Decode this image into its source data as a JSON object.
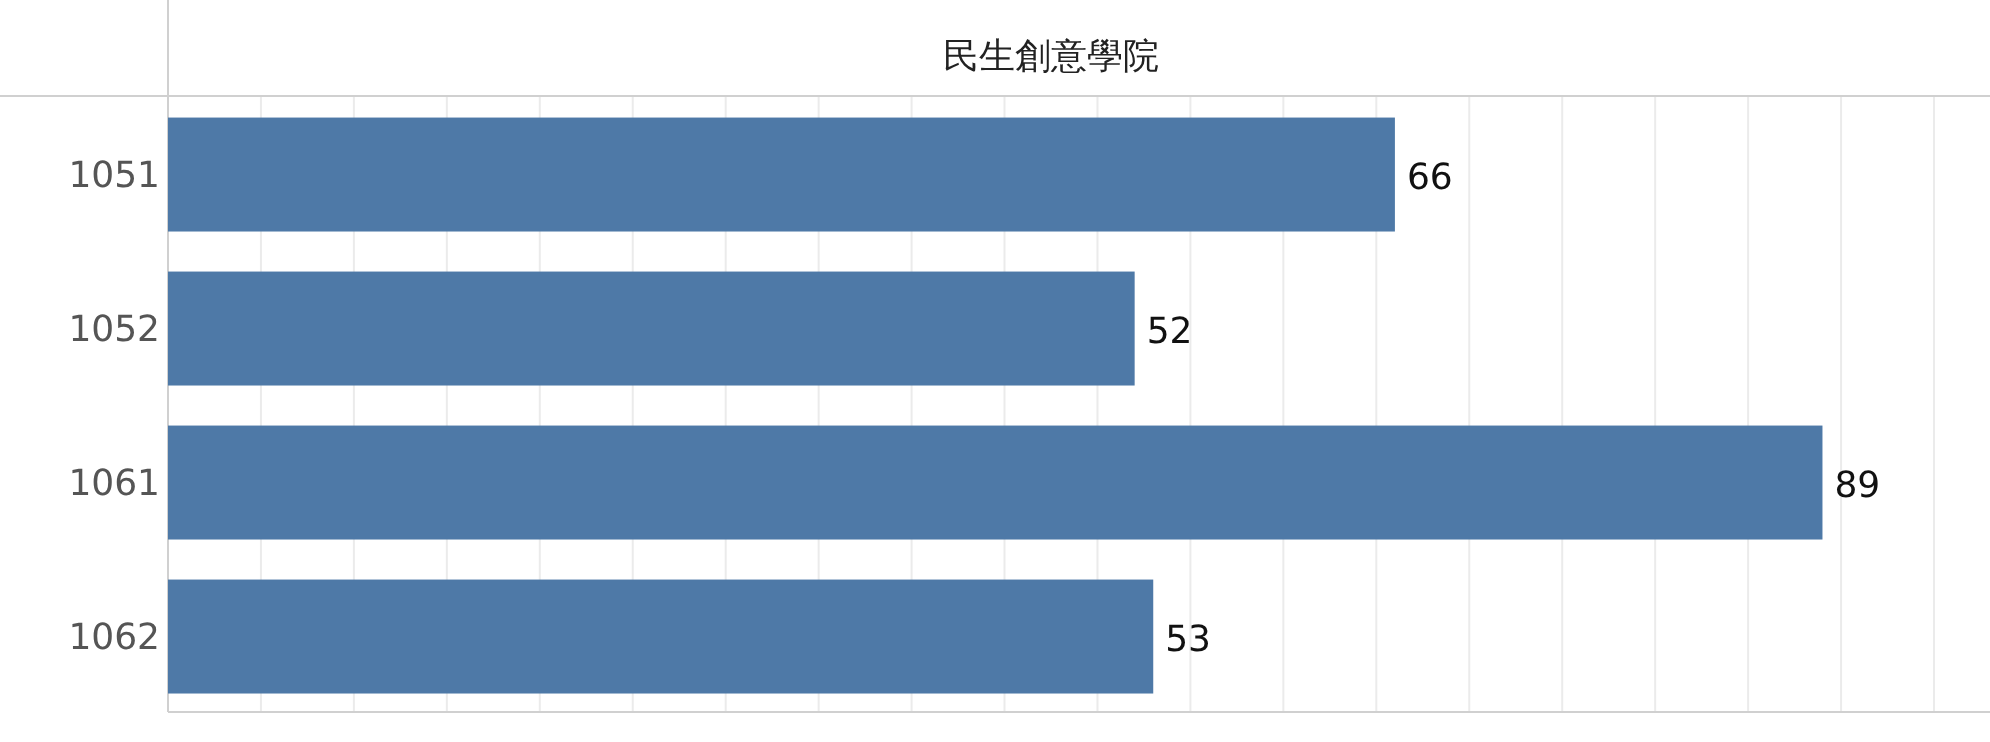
{
  "chart_data": {
    "type": "bar",
    "orientation": "horizontal",
    "title": "民生創意學院",
    "categories": [
      "1051",
      "1052",
      "1061",
      "1062"
    ],
    "values": [
      66,
      52,
      89,
      53
    ],
    "color": "#4e79a7",
    "data_labels": true,
    "grid": "x",
    "tick_labels": "y",
    "xlim": [
      0,
      95
    ],
    "xticks": [
      {
        "value": 0,
        "label": null
      },
      {
        "value": 5,
        "label": null
      },
      {
        "value": 10,
        "label": null
      },
      {
        "value": 15,
        "label": null
      },
      {
        "value": 20,
        "label": null
      },
      {
        "value": 25,
        "label": null
      },
      {
        "value": 30,
        "label": null
      },
      {
        "value": 35,
        "label": null
      },
      {
        "value": 40,
        "label": null
      },
      {
        "value": 45,
        "label": null
      },
      {
        "value": 50,
        "label": null
      },
      {
        "value": 55,
        "label": null
      },
      {
        "value": 60,
        "label": null
      },
      {
        "value": 65,
        "label": null
      },
      {
        "value": 70,
        "label": null
      },
      {
        "value": 75,
        "label": null
      },
      {
        "value": 80,
        "label": null
      },
      {
        "value": 85,
        "label": null
      },
      {
        "value": 90,
        "label": null
      },
      {
        "value": 95,
        "label": null
      }
    ]
  }
}
